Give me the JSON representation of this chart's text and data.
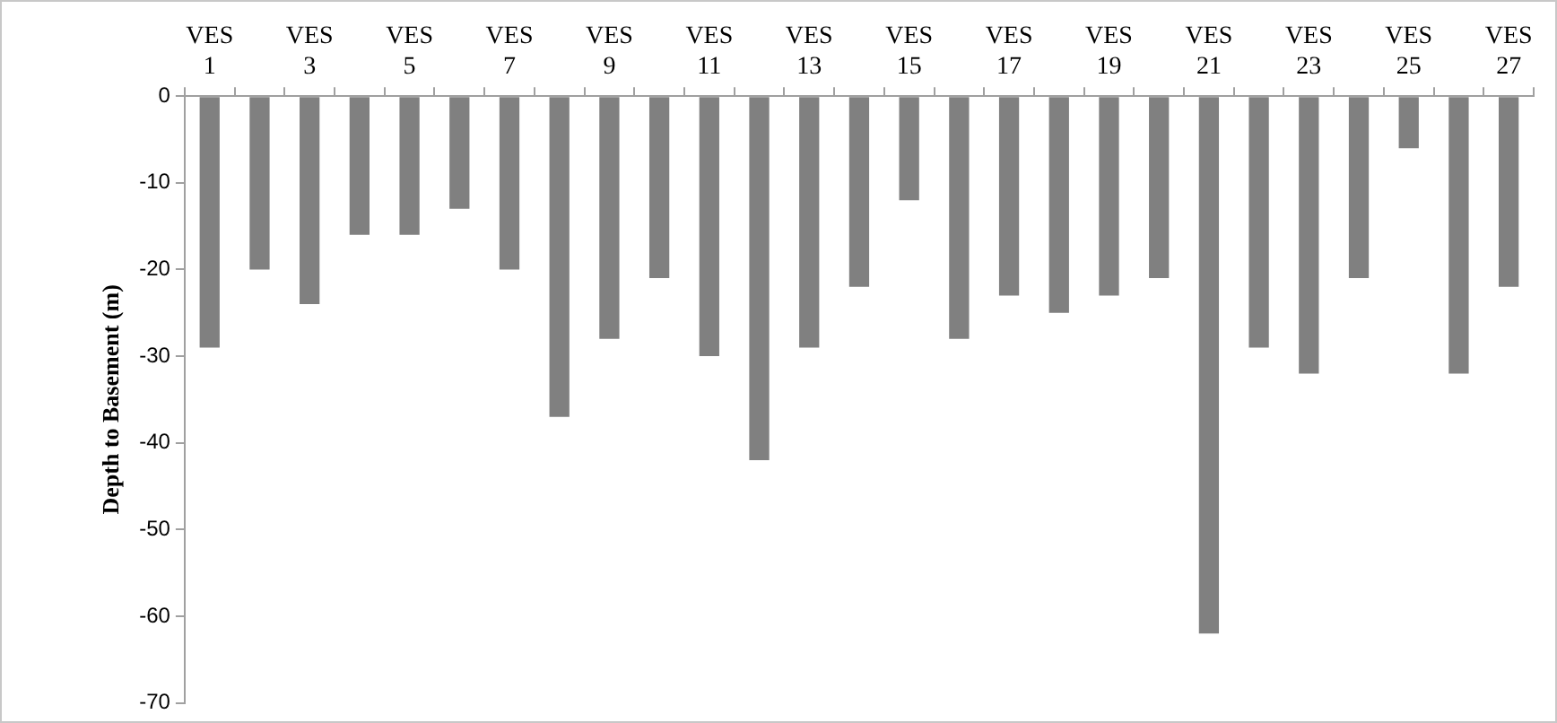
{
  "chart_data": {
    "type": "bar",
    "ylabel": "Depth to Basement (m)",
    "categories": [
      "VES 1",
      null,
      "VES 3",
      null,
      "VES 5",
      null,
      "VES 7",
      null,
      "VES 9",
      null,
      "VES 11",
      null,
      "VES 13",
      null,
      "VES 15",
      null,
      "VES 17",
      null,
      "VES 19",
      null,
      "VES 21",
      null,
      "VES 23",
      null,
      "VES 25",
      null,
      "VES 27"
    ],
    "values": [
      -29,
      -20,
      -24,
      -16,
      -16,
      -13,
      -20,
      -37,
      -28,
      -21,
      -30,
      -42,
      -29,
      -22,
      -12,
      -28,
      -23,
      -25,
      -23,
      -21,
      -62,
      -29,
      -32,
      -21,
      -6,
      -32,
      -22
    ],
    "color": "#808080",
    "ylim": [
      -70,
      0
    ],
    "yticks": [
      -70,
      -60,
      -50,
      -40,
      -30,
      -20,
      -10,
      0
    ],
    "grid": false,
    "legend": false
  }
}
